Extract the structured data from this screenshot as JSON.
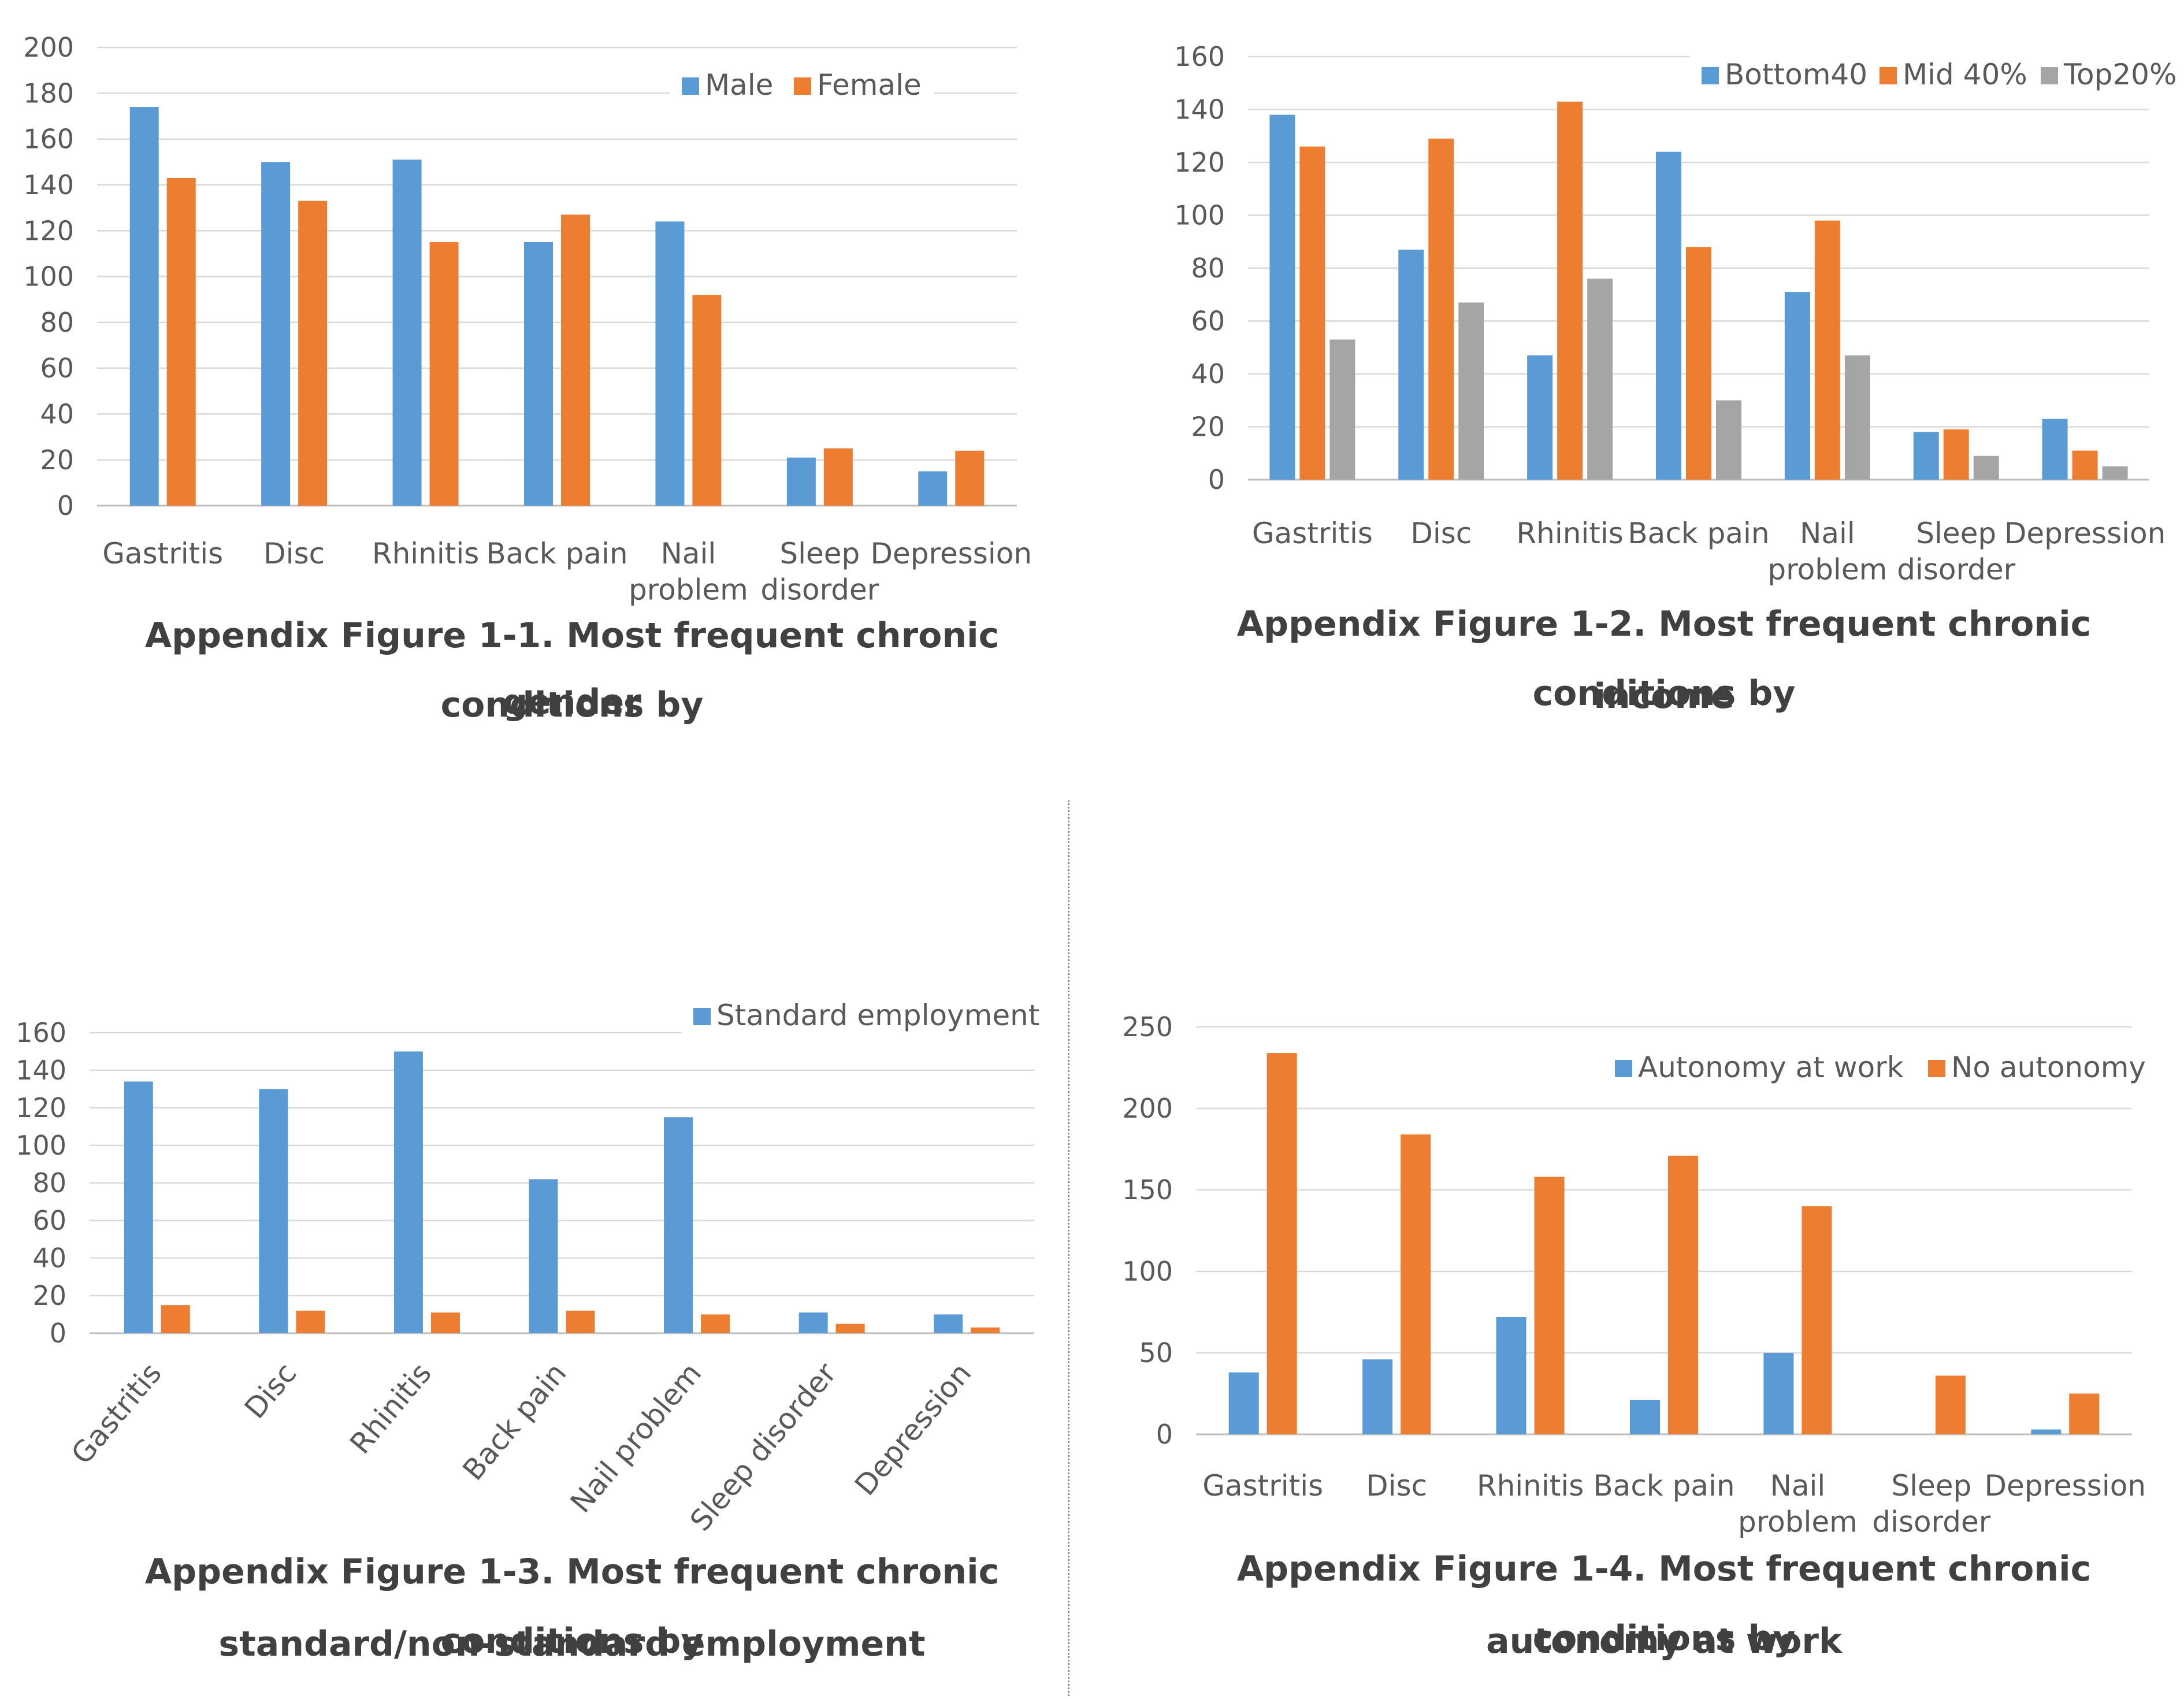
{
  "colors": {
    "blue": "#5B9BD5",
    "orange": "#ED7D31",
    "gray": "#A5A5A5",
    "grid": "#D9D9D9",
    "text": "#595959"
  },
  "chart_data": [
    {
      "id": "fig1",
      "type": "bar",
      "categories": [
        "Gastritis",
        "Disc",
        "Rhinitis",
        "Back pain",
        "Nail problem",
        "Sleep disorder",
        "Depression"
      ],
      "series": [
        {
          "name": "Male",
          "color": "#5B9BD5",
          "values": [
            174,
            150,
            151,
            115,
            124,
            21,
            15
          ]
        },
        {
          "name": "Female",
          "color": "#ED7D31",
          "values": [
            143,
            133,
            115,
            127,
            92,
            25,
            24
          ]
        }
      ],
      "ylim": [
        0,
        200
      ],
      "ystep": 20,
      "legend_position": "top-right",
      "caption_lines": [
        "Appendix Figure 1-1. Most frequent chronic conditions by",
        "gender"
      ]
    },
    {
      "id": "fig2",
      "type": "bar",
      "categories": [
        "Gastritis",
        "Disc",
        "Rhinitis",
        "Back pain",
        "Nail problem",
        "Sleep disorder",
        "Depression"
      ],
      "series": [
        {
          "name": "Bottom40",
          "color": "#5B9BD5",
          "values": [
            138,
            87,
            47,
            124,
            71,
            18,
            23
          ]
        },
        {
          "name": "Mid 40%",
          "color": "#ED7D31",
          "values": [
            126,
            129,
            143,
            88,
            98,
            19,
            11
          ]
        },
        {
          "name": "Top20%",
          "color": "#A5A5A5",
          "values": [
            53,
            67,
            76,
            30,
            47,
            9,
            5
          ]
        }
      ],
      "ylim": [
        0,
        160
      ],
      "ystep": 20,
      "legend_position": "top-right",
      "caption_lines": [
        "Appendix Figure 1-2. Most frequent chronic conditions by",
        "income"
      ]
    },
    {
      "id": "fig3",
      "type": "bar",
      "categories": [
        "Gastritis",
        "Disc",
        "Rhinitis",
        "Back pain",
        "Nail problem",
        "Sleep disorder",
        "Depression"
      ],
      "series": [
        {
          "name": "Standard employment",
          "color": "#5B9BD5",
          "values": [
            134,
            130,
            150,
            82,
            115,
            11,
            10
          ]
        },
        {
          "name": "",
          "color": "#ED7D31",
          "values": [
            15,
            12,
            11,
            12,
            10,
            5,
            3
          ]
        }
      ],
      "ylim": [
        0,
        160
      ],
      "ystep": 20,
      "legend_position": "top-right",
      "rotated_labels": true,
      "caption_lines": [
        "Appendix Figure 1-3. Most frequent chronic conditions by",
        "standard/non-standard employment"
      ]
    },
    {
      "id": "fig4",
      "type": "bar",
      "categories": [
        "Gastritis",
        "Disc",
        "Rhinitis",
        "Back pain",
        "Nail problem",
        "Sleep disorder",
        "Depression"
      ],
      "series": [
        {
          "name": "Autonomy at work",
          "color": "#5B9BD5",
          "values": [
            38,
            46,
            72,
            21,
            50,
            0,
            3
          ]
        },
        {
          "name": "No autonomy",
          "color": "#ED7D31",
          "values": [
            234,
            184,
            158,
            171,
            140,
            36,
            25
          ]
        }
      ],
      "ylim": [
        0,
        250
      ],
      "ystep": 50,
      "legend_position": "top-right",
      "caption_lines": [
        "Appendix Figure 1-4. Most frequent chronic conditions by",
        "autonomy at work"
      ]
    }
  ]
}
